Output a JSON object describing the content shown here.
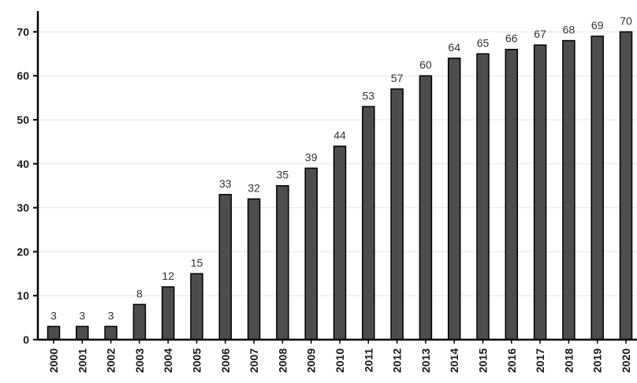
{
  "chart_data": {
    "type": "bar",
    "categories": [
      "2000",
      "2001",
      "2002",
      "2003",
      "2004",
      "2005",
      "2006",
      "2007",
      "2008",
      "2009",
      "2010",
      "2011",
      "2012",
      "2013",
      "2014",
      "2015",
      "2016",
      "2017",
      "2018",
      "2019",
      "2020"
    ],
    "values": [
      3,
      3,
      3,
      8,
      12,
      15,
      33,
      32,
      35,
      39,
      44,
      53,
      57,
      60,
      64,
      65,
      66,
      67,
      68,
      69,
      70
    ],
    "data_labels": [
      "3",
      "3",
      "3",
      "8",
      "12",
      "15",
      "33",
      "32",
      "35",
      "39",
      "44",
      "53",
      "57",
      "60",
      "64",
      "65",
      "66",
      "67",
      "68",
      "69",
      "70"
    ],
    "ylim": [
      0,
      72
    ],
    "yticks": [
      0,
      10,
      20,
      30,
      40,
      50,
      60,
      70
    ],
    "title": "",
    "xlabel": "",
    "ylabel": "",
    "grid": true,
    "legend": "none",
    "bar_color": "#4d4d4d",
    "bar_stroke": "#000000",
    "grid_color": "#e6e6e6",
    "axis_color": "#000000"
  }
}
